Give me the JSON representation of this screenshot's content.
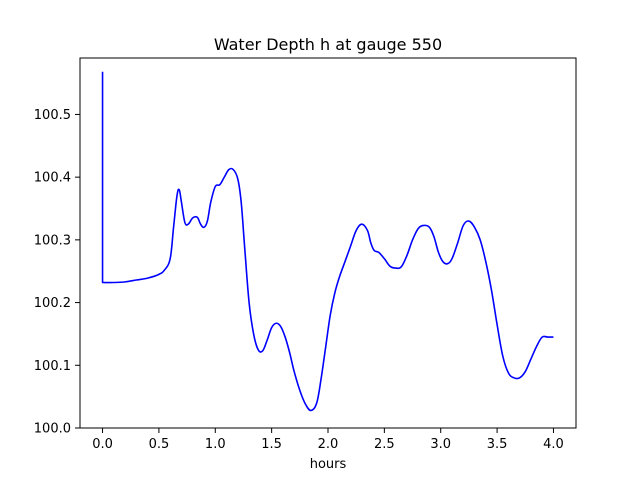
{
  "chart_data": {
    "type": "line",
    "title": "Water Depth h at gauge 550",
    "xlabel": "hours",
    "ylabel": "",
    "xlim": [
      -0.2,
      4.2
    ],
    "ylim": [
      100.0,
      100.59
    ],
    "x_ticks": [
      0.0,
      0.5,
      1.0,
      1.5,
      2.0,
      2.5,
      3.0,
      3.5,
      4.0
    ],
    "x_tick_labels": [
      "0.0",
      "0.5",
      "1.0",
      "1.5",
      "2.0",
      "2.5",
      "3.0",
      "3.5",
      "4.0"
    ],
    "y_ticks": [
      100.0,
      100.1,
      100.2,
      100.3,
      100.4,
      100.5
    ],
    "y_tick_labels": [
      "100.0",
      "100.1",
      "100.2",
      "100.3",
      "100.4",
      "100.5"
    ],
    "grid": false,
    "legend": "none",
    "series": [
      {
        "color": "#0000ff",
        "x": [
          0.0,
          0.0,
          0.0,
          0.1,
          0.2,
          0.3,
          0.4,
          0.5,
          0.55,
          0.6,
          0.63,
          0.66,
          0.68,
          0.7,
          0.73,
          0.76,
          0.8,
          0.84,
          0.87,
          0.9,
          0.93,
          0.96,
          1.0,
          1.04,
          1.08,
          1.12,
          1.16,
          1.2,
          1.23,
          1.26,
          1.3,
          1.34,
          1.38,
          1.42,
          1.46,
          1.5,
          1.54,
          1.58,
          1.62,
          1.66,
          1.7,
          1.75,
          1.8,
          1.85,
          1.9,
          1.94,
          1.98,
          2.02,
          2.06,
          2.1,
          2.15,
          2.2,
          2.25,
          2.3,
          2.35,
          2.38,
          2.41,
          2.45,
          2.5,
          2.55,
          2.6,
          2.65,
          2.7,
          2.75,
          2.8,
          2.85,
          2.9,
          2.94,
          2.98,
          3.02,
          3.06,
          3.1,
          3.15,
          3.2,
          3.25,
          3.3,
          3.35,
          3.4,
          3.45,
          3.5,
          3.55,
          3.6,
          3.65,
          3.7,
          3.75,
          3.8,
          3.85,
          3.9,
          3.95,
          4.0
        ],
        "y": [
          100.568,
          100.232,
          100.232,
          100.232,
          100.233,
          100.236,
          100.239,
          100.245,
          100.252,
          100.27,
          100.32,
          100.37,
          100.38,
          100.36,
          100.328,
          100.325,
          100.335,
          100.336,
          100.325,
          100.32,
          100.33,
          100.36,
          100.385,
          100.388,
          100.4,
          100.412,
          100.412,
          100.397,
          100.36,
          100.29,
          100.2,
          100.15,
          100.125,
          100.123,
          100.14,
          100.16,
          100.167,
          100.162,
          100.145,
          100.12,
          100.09,
          100.06,
          100.038,
          100.028,
          100.04,
          100.08,
          100.13,
          100.18,
          100.215,
          100.24,
          100.265,
          100.29,
          100.315,
          100.325,
          100.315,
          100.295,
          100.283,
          100.28,
          100.27,
          100.258,
          100.255,
          100.257,
          100.275,
          100.3,
          100.318,
          100.323,
          100.32,
          100.305,
          100.28,
          100.265,
          100.262,
          100.27,
          100.295,
          100.323,
          100.33,
          100.32,
          100.3,
          100.265,
          100.22,
          100.165,
          100.115,
          100.088,
          100.08,
          100.08,
          100.09,
          100.11,
          100.13,
          100.145,
          100.145,
          100.145
        ]
      }
    ]
  }
}
